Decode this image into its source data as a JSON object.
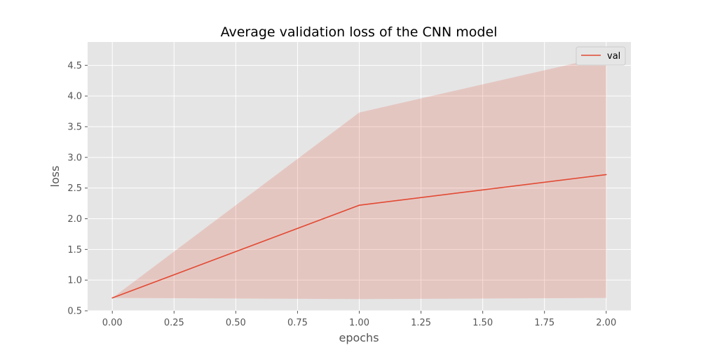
{
  "chart_data": {
    "type": "line",
    "title": "Average validation loss of the CNN model",
    "xlabel": "epochs",
    "ylabel": "loss",
    "x": [
      0,
      1,
      2
    ],
    "xlim": [
      -0.1,
      2.1
    ],
    "ylim": [
      0.5,
      4.88
    ],
    "xticks": [
      0,
      0.25,
      0.5,
      0.75,
      1,
      1.25,
      1.5,
      1.75,
      2
    ],
    "xtick_labels": [
      "0.00",
      "0.25",
      "0.50",
      "0.75",
      "1.00",
      "1.25",
      "1.50",
      "1.75",
      "2.00"
    ],
    "yticks": [
      0.5,
      1,
      1.5,
      2,
      2.5,
      3,
      3.5,
      4,
      4.5
    ],
    "ytick_labels": [
      "0.5",
      "1.0",
      "1.5",
      "2.0",
      "2.5",
      "3.0",
      "3.5",
      "4.0",
      "4.5"
    ],
    "series": [
      {
        "name": "val",
        "values": [
          0.71,
          2.22,
          2.72
        ],
        "band_lower": [
          0.71,
          0.69,
          0.71
        ],
        "band_upper": [
          0.71,
          3.73,
          4.65
        ],
        "color": "#e24a33",
        "band_color": "#e24a33",
        "band_opacity": 0.2
      }
    ],
    "grid": true,
    "legend_position": "top-right",
    "style": {
      "plot_background": "#e5e5e5",
      "grid_color": "#ffffff",
      "tick_color": "#555555"
    }
  }
}
